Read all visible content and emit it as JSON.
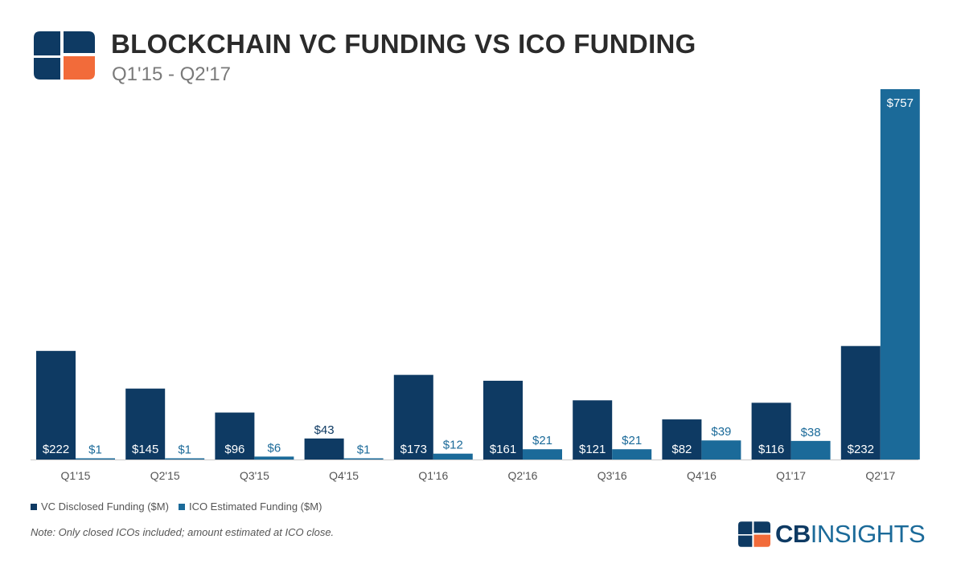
{
  "header": {
    "title": "BLOCKCHAIN VC FUNDING VS ICO FUNDING",
    "subtitle": "Q1'15 - Q2'17"
  },
  "colors": {
    "vc": "#0e3a63",
    "ico": "#1b6a99",
    "logo_accent": "#f26b3a",
    "axis_label": "#555555"
  },
  "legend": {
    "vc_label": "VC Disclosed Funding ($M)",
    "ico_label": "ICO Estimated Funding ($M)"
  },
  "note": "Note: Only closed ICOs included; amount estimated at ICO close.",
  "brand": {
    "cb": "CB",
    "insights": "INSIGHTS"
  },
  "icons": {
    "logo": "cb-insights-logo-icon"
  },
  "chart_data": {
    "type": "bar",
    "title": "BLOCKCHAIN VC FUNDING VS ICO FUNDING",
    "subtitle": "Q1'15 - Q2'17",
    "xlabel": "",
    "ylabel": "",
    "categories": [
      "Q1'15",
      "Q2'15",
      "Q3'15",
      "Q4'15",
      "Q1'16",
      "Q2'16",
      "Q3'16",
      "Q4'16",
      "Q1'17",
      "Q2'17"
    ],
    "series": [
      {
        "name": "VC Disclosed Funding ($M)",
        "values": [
          222,
          145,
          96,
          43,
          173,
          161,
          121,
          82,
          116,
          232
        ],
        "labels": [
          "$222",
          "$145",
          "$96",
          "$43",
          "$173",
          "$161",
          "$121",
          "$82",
          "$116",
          "$232"
        ]
      },
      {
        "name": "ICO Estimated Funding ($M)",
        "values": [
          1,
          1,
          6,
          1,
          12,
          21,
          21,
          39,
          38,
          757
        ],
        "labels": [
          "$1",
          "$1",
          "$6",
          "$1",
          "$12",
          "$21",
          "$21",
          "$39",
          "$38",
          "$757"
        ]
      }
    ],
    "ylim": [
      0,
      757
    ],
    "grid": false,
    "legend_position": "bottom-left"
  }
}
